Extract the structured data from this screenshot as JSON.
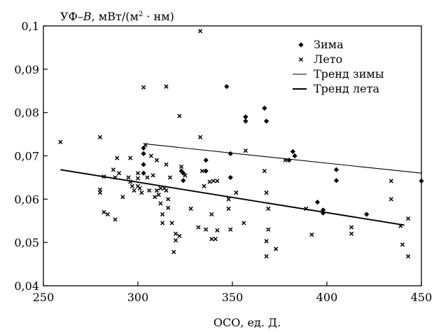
{
  "chart_data": {
    "type": "scatter",
    "ylabel_parts": {
      "main": "УФ–",
      "var": "B",
      "mid": ", мВт/(м",
      "sup": "2",
      "end": " · нм)"
    },
    "xlabel": "ОСО, ед. Д.",
    "xlim": [
      250,
      450
    ],
    "ylim": [
      0.04,
      0.1
    ],
    "x_ticks": [
      250,
      300,
      350,
      400,
      450
    ],
    "x_tick_labels": [
      "250",
      "300",
      "350",
      "400",
      "450"
    ],
    "y_ticks": [
      0.04,
      0.05,
      0.06,
      0.07,
      0.08,
      0.09,
      0.1
    ],
    "y_tick_labels": [
      "0,04",
      "0,05",
      "0,06",
      "0,07",
      "0,08",
      "0,09",
      "0,1"
    ],
    "legend_position": "top-right",
    "series": [
      {
        "name": "Зима",
        "marker": "diamond",
        "points": [
          [
            303,
            0.0718
          ],
          [
            303,
            0.0705
          ],
          [
            303,
            0.068
          ],
          [
            303,
            0.066
          ],
          [
            323,
            0.0665
          ],
          [
            324,
            0.066
          ],
          [
            324,
            0.0643
          ],
          [
            336,
            0.069
          ],
          [
            336,
            0.0665
          ],
          [
            347,
            0.086
          ],
          [
            349,
            0.0705
          ],
          [
            349,
            0.065
          ],
          [
            357,
            0.079
          ],
          [
            357,
            0.078
          ],
          [
            367,
            0.081
          ],
          [
            368,
            0.078
          ],
          [
            380,
            0.069
          ],
          [
            382,
            0.071
          ],
          [
            383,
            0.07
          ],
          [
            395,
            0.0593
          ],
          [
            398,
            0.0575
          ],
          [
            398,
            0.0568
          ],
          [
            405,
            0.0668
          ],
          [
            405,
            0.0643
          ],
          [
            421,
            0.0565
          ],
          [
            450,
            0.0642
          ]
        ]
      },
      {
        "name": "Лето",
        "marker": "cross",
        "points": [
          [
            259,
            0.0732
          ],
          [
            280,
            0.0743
          ],
          [
            280,
            0.0622
          ],
          [
            280,
            0.0615
          ],
          [
            282,
            0.0652
          ],
          [
            282,
            0.057
          ],
          [
            284,
            0.0565
          ],
          [
            287,
            0.0668
          ],
          [
            288,
            0.065
          ],
          [
            288,
            0.0553
          ],
          [
            289,
            0.0695
          ],
          [
            290,
            0.066
          ],
          [
            292,
            0.0605
          ],
          [
            295,
            0.065
          ],
          [
            296,
            0.0695
          ],
          [
            296,
            0.064
          ],
          [
            297,
            0.063
          ],
          [
            298,
            0.062
          ],
          [
            300,
            0.066
          ],
          [
            300,
            0.0648
          ],
          [
            300,
            0.063
          ],
          [
            301,
            0.0625
          ],
          [
            302,
            0.0615
          ],
          [
            303,
            0.0858
          ],
          [
            304,
            0.0725
          ],
          [
            305,
            0.065
          ],
          [
            306,
            0.062
          ],
          [
            307,
            0.07
          ],
          [
            308,
            0.0655
          ],
          [
            309,
            0.0605
          ],
          [
            310,
            0.069
          ],
          [
            310,
            0.062
          ],
          [
            311,
            0.061
          ],
          [
            312,
            0.0625
          ],
          [
            312,
            0.059
          ],
          [
            313,
            0.0565
          ],
          [
            313,
            0.0545
          ],
          [
            314,
            0.0625
          ],
          [
            315,
            0.086
          ],
          [
            315,
            0.068
          ],
          [
            315,
            0.062
          ],
          [
            316,
            0.06
          ],
          [
            316,
            0.058
          ],
          [
            317,
            0.065
          ],
          [
            318,
            0.0545
          ],
          [
            319,
            0.0478
          ],
          [
            320,
            0.052
          ],
          [
            320,
            0.0505
          ],
          [
            322,
            0.0792
          ],
          [
            322,
            0.0515
          ],
          [
            323,
            0.0675
          ],
          [
            325,
            0.0655
          ],
          [
            328,
            0.0578
          ],
          [
            332,
            0.0535
          ],
          [
            333,
            0.0988
          ],
          [
            333,
            0.0743
          ],
          [
            334,
            0.0665
          ],
          [
            335,
            0.063
          ],
          [
            336,
            0.053
          ],
          [
            338,
            0.064
          ],
          [
            339,
            0.0508
          ],
          [
            339,
            0.0565
          ],
          [
            340,
            0.0642
          ],
          [
            341,
            0.0508
          ],
          [
            342,
            0.0528
          ],
          [
            342,
            0.0642
          ],
          [
            348,
            0.06
          ],
          [
            348,
            0.0578
          ],
          [
            349,
            0.053
          ],
          [
            352,
            0.0615
          ],
          [
            356,
            0.0545
          ],
          [
            357,
            0.0712
          ],
          [
            367,
            0.0665
          ],
          [
            368,
            0.0615
          ],
          [
            368,
            0.0503
          ],
          [
            368,
            0.0468
          ],
          [
            369,
            0.0578
          ],
          [
            369,
            0.053
          ],
          [
            373,
            0.0485
          ],
          [
            378,
            0.069
          ],
          [
            389,
            0.0578
          ],
          [
            392,
            0.0518
          ],
          [
            413,
            0.0535
          ],
          [
            413,
            0.052
          ],
          [
            434,
            0.0642
          ],
          [
            434,
            0.06
          ],
          [
            439,
            0.0538
          ],
          [
            440,
            0.0495
          ],
          [
            443,
            0.0555
          ],
          [
            443,
            0.0468
          ]
        ]
      }
    ],
    "trends": [
      {
        "name": "Тренд зимы",
        "x": [
          303,
          450
        ],
        "y": [
          0.0728,
          0.066
        ],
        "width": "thin"
      },
      {
        "name": "Тренд лета",
        "x": [
          259,
          441
        ],
        "y": [
          0.0668,
          0.054
        ],
        "width": "thick"
      }
    ]
  }
}
